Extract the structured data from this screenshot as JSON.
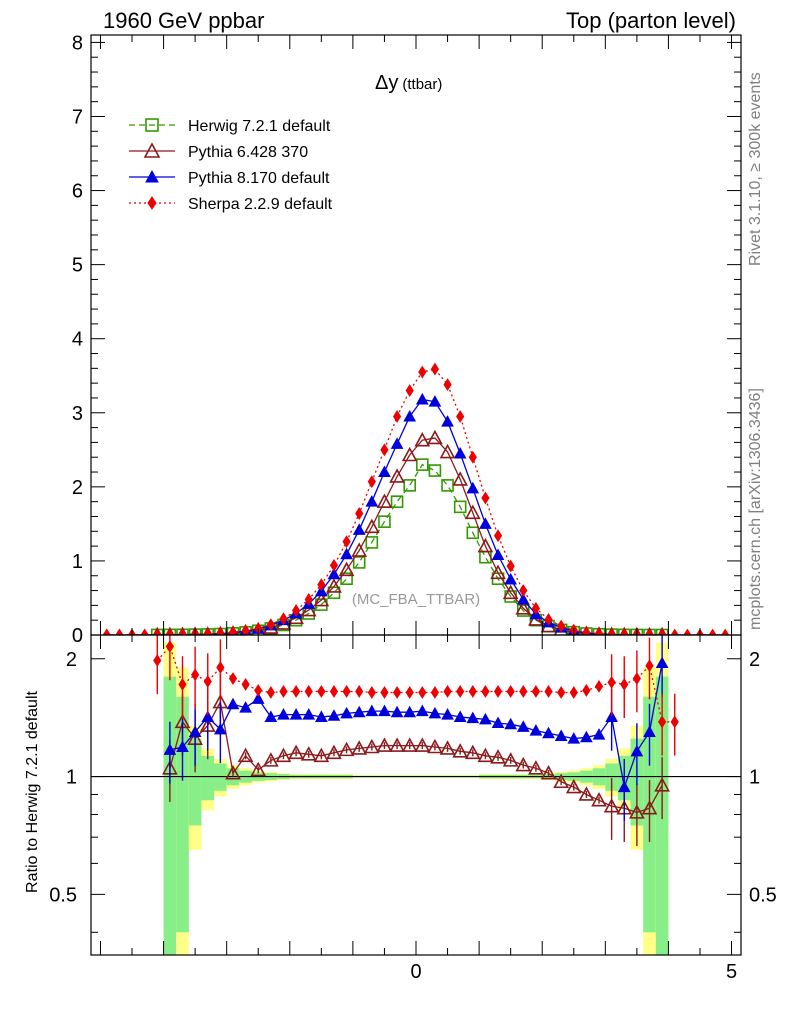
{
  "header": {
    "left": "1960 GeV ppbar",
    "right": "Top (parton level)"
  },
  "side_labels": {
    "rivet": "Rivet 3.1.10, ≥ 300k events",
    "ref": "mcplots.cern.ch [arXiv:1306.3436]"
  },
  "plot": {
    "title_main": "Δy",
    "title_sub": "(ttbar)",
    "analysis_label": "(MC_FBA_TTBAR)",
    "ratio_ylabel": "Ratio to Herwig 7.2.1 default"
  },
  "chart_data": {
    "type": "line",
    "title": "Δy (ttbar)",
    "xlabel": "",
    "ylabel": "",
    "xlim": [
      -5.15,
      5.15
    ],
    "ylim": [
      0,
      8.1
    ],
    "ratio_ylim": [
      0.35,
      2.3
    ],
    "x_ticks": [
      "0",
      "5"
    ],
    "y_ticks": [
      "0",
      "1",
      "2",
      "3",
      "4",
      "5",
      "6",
      "7",
      "8"
    ],
    "ratio_ticks": [
      "0.5",
      "1",
      "2"
    ],
    "legend": [
      "Herwig 7.2.1 default",
      "Pythia 6.428 370",
      "Pythia 8.170 default",
      "Sherpa 2.2.9 default"
    ],
    "x": [
      -4.9,
      -4.7,
      -4.5,
      -4.3,
      -4.1,
      -3.9,
      -3.7,
      -3.5,
      -3.3,
      -3.1,
      -2.9,
      -2.7,
      -2.5,
      -2.3,
      -2.1,
      -1.9,
      -1.7,
      -1.5,
      -1.3,
      -1.1,
      -0.9,
      -0.7,
      -0.5,
      -0.3,
      -0.1,
      0.1,
      0.3,
      0.5,
      0.7,
      0.9,
      1.1,
      1.3,
      1.5,
      1.7,
      1.9,
      2.1,
      2.3,
      2.5,
      2.7,
      2.9,
      3.1,
      3.3,
      3.5,
      3.7,
      3.9,
      4.1,
      4.3,
      4.5,
      4.7,
      4.9
    ],
    "series": [
      {
        "name": "Herwig 7.2.1 default",
        "color": "#339900",
        "marker": "open-square",
        "line": "dashed",
        "values": [
          0,
          0,
          0,
          0,
          0.001,
          0.002,
          0.003,
          0.005,
          0.008,
          0.013,
          0.022,
          0.036,
          0.057,
          0.089,
          0.135,
          0.2,
          0.29,
          0.41,
          0.57,
          0.76,
          0.98,
          1.25,
          1.53,
          1.8,
          2.02,
          2.3,
          2.22,
          2.02,
          1.73,
          1.38,
          1.05,
          0.76,
          0.52,
          0.33,
          0.2,
          0.12,
          0.069,
          0.038,
          0.02,
          0.01,
          0.005,
          0.002,
          0.001,
          0,
          0,
          0,
          0,
          0,
          0,
          0
        ]
      },
      {
        "name": "Pythia 6.428 370",
        "color": "#8b1a1a",
        "marker": "open-triangle",
        "line": "solid",
        "values": [
          0,
          0,
          0,
          0,
          0.001,
          0.002,
          0.004,
          0.006,
          0.01,
          0.015,
          0.024,
          0.04,
          0.064,
          0.1,
          0.156,
          0.232,
          0.336,
          0.472,
          0.656,
          0.88,
          1.14,
          1.46,
          1.8,
          2.14,
          2.43,
          2.63,
          2.66,
          2.47,
          2.1,
          1.65,
          1.2,
          0.84,
          0.57,
          0.36,
          0.21,
          0.12,
          0.07,
          0.037,
          0.019,
          0.009,
          0.004,
          0.002,
          0.001,
          0,
          0,
          0,
          0,
          0,
          0,
          0
        ]
      },
      {
        "name": "Pythia 8.170 default",
        "color": "#0000dd",
        "marker": "filled-triangle",
        "line": "solid",
        "values": [
          0,
          0,
          0,
          0,
          0.001,
          0.002,
          0.004,
          0.007,
          0.012,
          0.019,
          0.032,
          0.053,
          0.082,
          0.13,
          0.2,
          0.29,
          0.42,
          0.59,
          0.82,
          1.09,
          1.42,
          1.8,
          2.2,
          2.58,
          2.95,
          3.18,
          3.15,
          2.88,
          2.45,
          1.98,
          1.5,
          1.08,
          0.75,
          0.48,
          0.28,
          0.17,
          0.1,
          0.055,
          0.03,
          0.015,
          0.007,
          0.003,
          0.001,
          0,
          0,
          0,
          0,
          0,
          0,
          0
        ]
      },
      {
        "name": "Sherpa 2.2.9 default",
        "color": "#ee0000",
        "marker": "filled-diamond",
        "line": "dotted",
        "values": [
          0.001,
          0.001,
          0.001,
          0.001,
          0.002,
          0.004,
          0.006,
          0.009,
          0.014,
          0.022,
          0.036,
          0.058,
          0.09,
          0.14,
          0.22,
          0.33,
          0.48,
          0.68,
          0.94,
          1.26,
          1.64,
          2.07,
          2.5,
          2.95,
          3.3,
          3.55,
          3.59,
          3.38,
          2.95,
          2.4,
          1.85,
          1.34,
          0.93,
          0.6,
          0.36,
          0.21,
          0.12,
          0.065,
          0.034,
          0.017,
          0.008,
          0.004,
          0.002,
          0.001,
          0,
          0,
          0,
          0,
          0,
          0
        ]
      }
    ],
    "ratio_series": [
      {
        "name": "Pythia 6.428 370",
        "x": [
          -3.9,
          -3.7,
          -3.5,
          -3.3,
          -3.1,
          -2.9,
          -2.7,
          -2.5,
          -2.3,
          -2.1,
          -1.9,
          -1.7,
          -1.5,
          -1.3,
          -1.1,
          -0.9,
          -0.7,
          -0.5,
          -0.3,
          -0.1,
          0.1,
          0.3,
          0.5,
          0.7,
          0.9,
          1.1,
          1.3,
          1.5,
          1.7,
          1.9,
          2.1,
          2.3,
          2.5,
          2.7,
          2.9,
          3.1,
          3.3,
          3.5,
          3.7,
          3.9
        ],
        "values": [
          1.05,
          1.38,
          1.25,
          1.35,
          1.55,
          1.02,
          1.13,
          1.04,
          1.1,
          1.13,
          1.15,
          1.14,
          1.13,
          1.15,
          1.17,
          1.18,
          1.19,
          1.2,
          1.2,
          1.2,
          1.2,
          1.19,
          1.18,
          1.16,
          1.15,
          1.13,
          1.12,
          1.1,
          1.07,
          1.05,
          1.02,
          0.97,
          0.94,
          0.9,
          0.87,
          0.84,
          0.83,
          0.81,
          0.83,
          0.95
        ]
      },
      {
        "name": "Pythia 8.170 default",
        "x": [
          -3.9,
          -3.7,
          -3.5,
          -3.3,
          -3.1,
          -2.9,
          -2.7,
          -2.5,
          -2.3,
          -2.1,
          -1.9,
          -1.7,
          -1.5,
          -1.3,
          -1.1,
          -0.9,
          -0.7,
          -0.5,
          -0.3,
          -0.1,
          0.1,
          0.3,
          0.5,
          0.7,
          0.9,
          1.1,
          1.3,
          1.5,
          1.7,
          1.9,
          2.1,
          2.3,
          2.5,
          2.7,
          2.9,
          3.1,
          3.3,
          3.5,
          3.7,
          3.9
        ],
        "values": [
          1.17,
          1.19,
          1.3,
          1.42,
          1.32,
          1.53,
          1.5,
          1.58,
          1.42,
          1.44,
          1.44,
          1.44,
          1.42,
          1.43,
          1.45,
          1.46,
          1.47,
          1.47,
          1.46,
          1.46,
          1.47,
          1.45,
          1.44,
          1.42,
          1.41,
          1.4,
          1.37,
          1.36,
          1.34,
          1.31,
          1.29,
          1.27,
          1.25,
          1.26,
          1.28,
          1.42,
          0.94,
          1.16,
          1.3,
          1.95
        ]
      },
      {
        "name": "Sherpa 2.2.9 default",
        "x": [
          -4.1,
          -3.9,
          -3.7,
          -3.5,
          -3.3,
          -3.1,
          -2.9,
          -2.7,
          -2.5,
          -2.3,
          -2.1,
          -1.9,
          -1.7,
          -1.5,
          -1.3,
          -1.1,
          -0.9,
          -0.7,
          -0.5,
          -0.3,
          -0.1,
          0.1,
          0.3,
          0.5,
          0.7,
          0.9,
          1.1,
          1.3,
          1.5,
          1.7,
          1.9,
          2.1,
          2.3,
          2.5,
          2.7,
          2.9,
          3.1,
          3.3,
          3.5,
          3.7,
          3.9,
          4.1
        ],
        "values": [
          1.98,
          2.15,
          1.72,
          1.82,
          1.75,
          1.9,
          1.78,
          1.72,
          1.66,
          1.64,
          1.65,
          1.65,
          1.65,
          1.65,
          1.65,
          1.65,
          1.65,
          1.64,
          1.64,
          1.64,
          1.64,
          1.64,
          1.64,
          1.65,
          1.65,
          1.65,
          1.65,
          1.65,
          1.65,
          1.65,
          1.65,
          1.65,
          1.64,
          1.64,
          1.66,
          1.7,
          1.74,
          1.72,
          1.78,
          1.92,
          1.38,
          1.38
        ]
      }
    ],
    "ratio_bands": {
      "x_edges": [
        -4.0,
        -3.8,
        -3.6,
        -3.4,
        -3.2,
        -3.0,
        -2.8,
        -2.6,
        -2.4,
        -2.2,
        -2.0,
        -1.0,
        1.0,
        2.0,
        2.2,
        2.4,
        2.6,
        2.8,
        3.0,
        3.2,
        3.4,
        3.6,
        3.8,
        4.0
      ],
      "inner_half_width": [
        0.8,
        0.6,
        0.25,
        0.13,
        0.08,
        0.05,
        0.035,
        0.025,
        0.02,
        0.015,
        0.01,
        0.005,
        0.01,
        0.015,
        0.02,
        0.025,
        0.035,
        0.05,
        0.08,
        0.13,
        0.25,
        0.6,
        0.8
      ],
      "outer_half_width": [
        1.2,
        0.9,
        0.35,
        0.18,
        0.11,
        0.07,
        0.05,
        0.035,
        0.028,
        0.02,
        0.015,
        0.008,
        0.015,
        0.02,
        0.028,
        0.035,
        0.05,
        0.07,
        0.11,
        0.18,
        0.35,
        0.9,
        1.2
      ],
      "inner_color": "#88ee88",
      "outer_color": "#ffff88"
    }
  }
}
